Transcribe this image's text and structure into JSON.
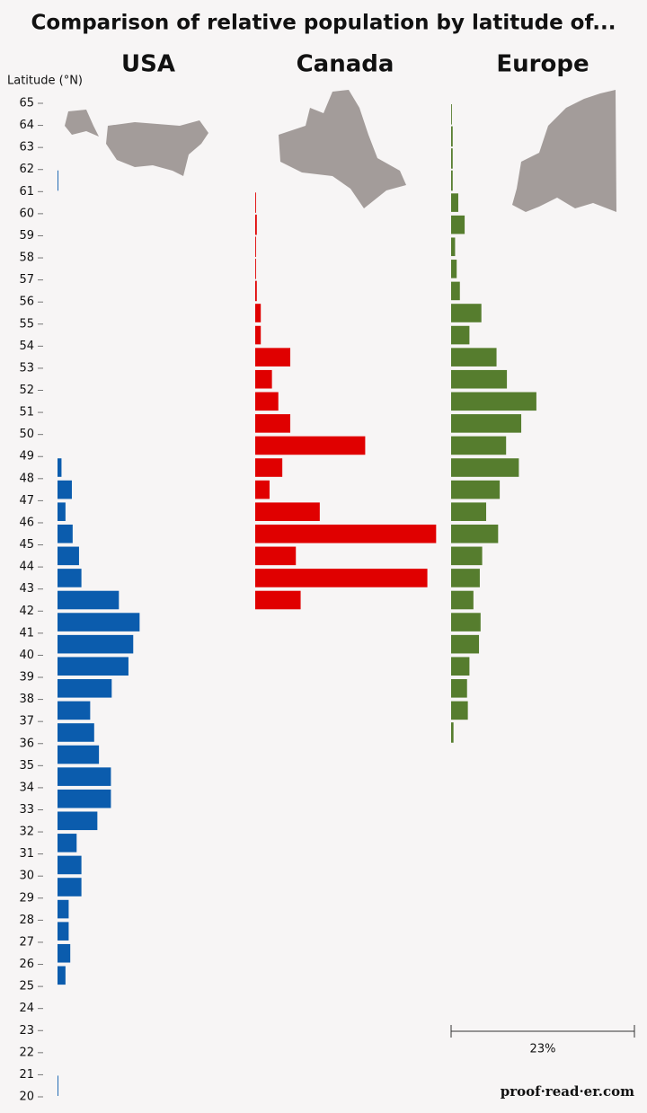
{
  "chart_data": {
    "type": "latitude-histogram",
    "title": "Comparison of relative population by latitude of...",
    "y_label": "Latitude (°N)",
    "bins": [
      20,
      21,
      22,
      23,
      24,
      25,
      26,
      27,
      28,
      29,
      30,
      31,
      32,
      33,
      34,
      35,
      36,
      37,
      38,
      39,
      40,
      41,
      42,
      43,
      44,
      45,
      46,
      47,
      48,
      49,
      50,
      51,
      52,
      53,
      54,
      55,
      56,
      57,
      58,
      59,
      60,
      61,
      62,
      63,
      64,
      65
    ],
    "ylim": [
      20,
      65
    ],
    "yticks": [
      20,
      21,
      22,
      23,
      24,
      25,
      26,
      27,
      28,
      29,
      30,
      31,
      32,
      33,
      34,
      35,
      36,
      37,
      38,
      39,
      40,
      41,
      42,
      43,
      44,
      45,
      46,
      47,
      48,
      49,
      50,
      51,
      52,
      53,
      54,
      55,
      56,
      57,
      58,
      59,
      60,
      61,
      62,
      63,
      64,
      65
    ],
    "xlim": [
      0,
      23
    ],
    "series": [
      {
        "name": "USA",
        "color": "#0b5cad",
        "values": [
          0.1,
          0,
          0,
          0,
          0,
          1.0,
          1.6,
          1.4,
          1.4,
          3.0,
          3.0,
          2.4,
          5.0,
          6.7,
          6.7,
          5.2,
          4.6,
          4.1,
          6.8,
          8.9,
          9.5,
          10.3,
          7.7,
          3.0,
          2.7,
          1.9,
          1.0,
          1.8,
          0.5,
          0,
          0,
          0,
          0,
          0,
          0,
          0,
          0,
          0,
          0,
          0,
          0,
          0.1,
          0,
          0,
          0
        ]
      },
      {
        "name": "Canada",
        "color": "#e00000",
        "values": [
          0,
          0,
          0,
          0,
          0,
          0,
          0,
          0,
          0,
          0,
          0,
          0,
          0,
          0,
          0,
          0,
          0,
          0,
          0,
          0,
          0,
          0,
          5.7,
          21.6,
          5.1,
          22.7,
          8.1,
          1.8,
          3.4,
          13.8,
          4.4,
          2.9,
          2.1,
          4.4,
          0.7,
          0.7,
          0.2,
          0.1,
          0.1,
          0.2,
          0.1,
          0,
          0,
          0,
          0
        ]
      },
      {
        "name": "Europe",
        "color": "#567d2e",
        "values": [
          0,
          0,
          0,
          0,
          0,
          0,
          0,
          0,
          0,
          0,
          0,
          0,
          0,
          0,
          0,
          0,
          0.3,
          2.1,
          2.0,
          2.3,
          3.5,
          3.7,
          2.8,
          3.6,
          3.9,
          5.9,
          4.4,
          6.1,
          8.5,
          6.9,
          8.8,
          10.7,
          7.0,
          5.7,
          2.3,
          3.8,
          1.1,
          0.7,
          0.5,
          1.7,
          0.9,
          0.2,
          0.2,
          0.2,
          0.1
        ]
      }
    ],
    "scale_bar": {
      "value": 23,
      "label": "23%"
    },
    "source": "proof·read·er.com"
  }
}
